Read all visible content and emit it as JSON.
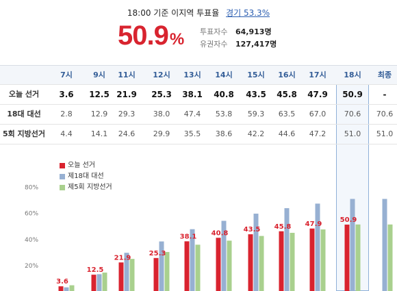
{
  "header": {
    "title": "18:00 기준 이지역 투표율",
    "link_label": "경기 53.3%"
  },
  "current": {
    "rate": "50.9",
    "pct_sign": "%",
    "voters_label": "투표자수",
    "voters_value": "64,913명",
    "electorate_label": "유권자수",
    "electorate_value": "127,417명"
  },
  "table": {
    "columns": [
      "7시",
      "9시",
      "11시",
      "12시",
      "13시",
      "14시",
      "15시",
      "16시",
      "17시",
      "18시",
      "최종"
    ],
    "rows": [
      {
        "label": "오늘 선거",
        "values": [
          "3.6",
          "12.5",
          "21.9",
          "25.3",
          "38.1",
          "40.8",
          "43.5",
          "45.8",
          "47.9",
          "50.9",
          "-"
        ]
      },
      {
        "label": "18대 대선",
        "values": [
          "2.8",
          "12.9",
          "29.3",
          "38.0",
          "47.4",
          "53.8",
          "59.3",
          "63.5",
          "67.0",
          "70.6",
          "70.6"
        ]
      },
      {
        "label": "5회 지방선거",
        "values": [
          "4.4",
          "14.1",
          "24.6",
          "29.9",
          "35.5",
          "38.6",
          "42.2",
          "44.6",
          "47.2",
          "51.0",
          "51.0"
        ]
      }
    ]
  },
  "colors": {
    "today": "#d9232f",
    "prev18": "#97b0d2",
    "local5": "#a9d08e",
    "highlight": "#8fb0d8"
  },
  "chart_data": {
    "type": "bar",
    "categories": [
      "7시",
      "9시",
      "11시",
      "12시",
      "13시",
      "14시",
      "15시",
      "16시",
      "17시",
      "18시",
      "최종"
    ],
    "series": [
      {
        "name": "오늘 선거",
        "values": [
          3.6,
          12.5,
          21.9,
          25.3,
          38.1,
          40.8,
          43.5,
          45.8,
          47.9,
          50.9,
          null
        ]
      },
      {
        "name": "제18대 대선",
        "values": [
          2.8,
          12.9,
          29.3,
          38.0,
          47.4,
          53.8,
          59.3,
          63.5,
          67.0,
          70.6,
          70.6
        ]
      },
      {
        "name": "제5회 지방선거",
        "values": [
          4.4,
          14.1,
          24.6,
          29.9,
          35.5,
          38.6,
          42.2,
          44.6,
          47.2,
          51.0,
          51.0
        ]
      }
    ],
    "data_labels": [
      "3.6",
      "12.5",
      "21.9",
      "25.3",
      "38.1",
      "40.8",
      "43.5",
      "45.8",
      "47.9",
      "50.9"
    ],
    "yticks": [
      "20%",
      "40%",
      "60%",
      "80%"
    ],
    "ytick_values": [
      20,
      40,
      60,
      80
    ],
    "ylim": [
      0,
      90
    ],
    "legend_position": "top-left",
    "grid": false
  }
}
